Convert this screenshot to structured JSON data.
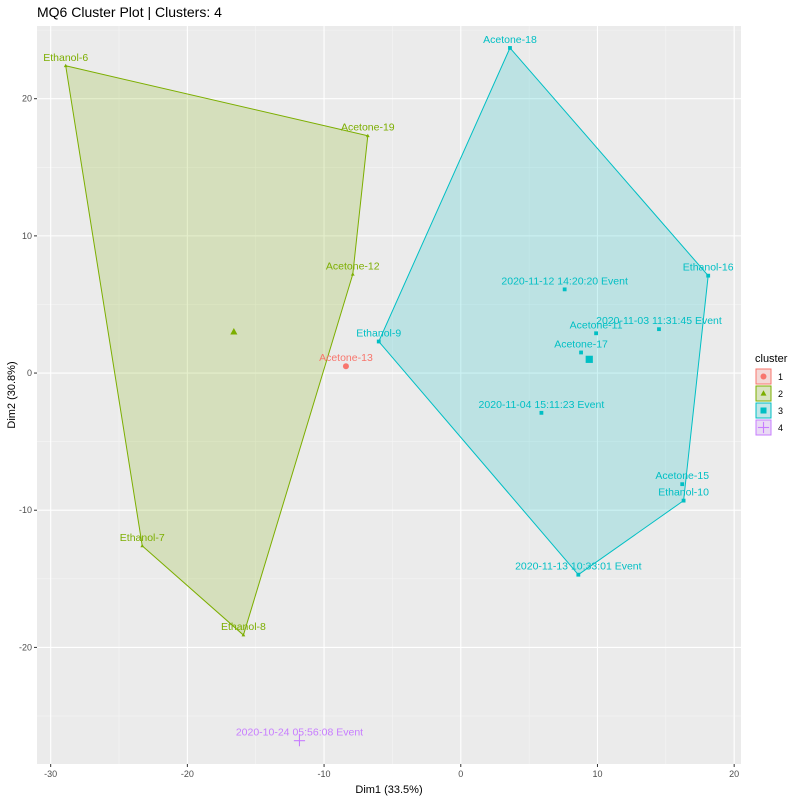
{
  "chart_data": {
    "type": "scatter",
    "title": "MQ6 Cluster Plot | Clusters: 4",
    "xlabel": "Dim1 (33.5%)",
    "ylabel": "Dim2 (30.8%)",
    "xlim": [
      -31,
      20.5
    ],
    "ylim": [
      -28.5,
      25.3
    ],
    "xticks": [
      -30,
      -20,
      -10,
      0,
      10,
      20
    ],
    "yticks": [
      -20,
      -10,
      0,
      10,
      20
    ],
    "grid": true,
    "legend": {
      "title": "cluster",
      "position": "right",
      "entries": [
        {
          "label": "1",
          "color": "#F8766D",
          "shape": "circle"
        },
        {
          "label": "2",
          "color": "#7CAE00",
          "shape": "triangle"
        },
        {
          "label": "3",
          "color": "#00BFC4",
          "shape": "square"
        },
        {
          "label": "4",
          "color": "#C77CFF",
          "shape": "plus"
        }
      ]
    },
    "series": [
      {
        "name": "1",
        "color": "#F8766D",
        "shape": "circle",
        "points": [
          {
            "label": "Acetone-13",
            "x": -8.4,
            "y": 0.5
          }
        ],
        "hull": []
      },
      {
        "name": "2",
        "color": "#7CAE00",
        "shape": "triangle",
        "points": [
          {
            "label": "Ethanol-6",
            "x": -28.9,
            "y": 22.4
          },
          {
            "label": "Acetone-19",
            "x": -6.8,
            "y": 17.3
          },
          {
            "label": "Acetone-12",
            "x": -7.9,
            "y": 7.2
          },
          {
            "label": "Ethanol-7",
            "x": -23.3,
            "y": -12.6
          },
          {
            "label": "Ethanol-8",
            "x": -15.9,
            "y": -19.1
          }
        ],
        "hull": [
          "Ethanol-6",
          "Acetone-19",
          "Acetone-12",
          "Ethanol-8",
          "Ethanol-7"
        ],
        "centroid": {
          "x": -16.6,
          "y": 3.0
        }
      },
      {
        "name": "3",
        "color": "#00BFC4",
        "shape": "square",
        "points": [
          {
            "label": "Acetone-18",
            "x": 3.6,
            "y": 23.7
          },
          {
            "label": "Ethanol-16",
            "x": 18.1,
            "y": 7.1
          },
          {
            "label": "2020-11-12 14:20:20 Event",
            "x": 7.6,
            "y": 6.1
          },
          {
            "label": "Ethanol-9",
            "x": -6.0,
            "y": 2.3
          },
          {
            "label": "Acetone-11",
            "x": 9.9,
            "y": 2.9
          },
          {
            "label": "2020-11-03 11:31:45 Event",
            "x": 14.5,
            "y": 3.2
          },
          {
            "label": "Acetone-17",
            "x": 8.8,
            "y": 1.5
          },
          {
            "label": "2020-11-04 15:11:23 Event",
            "x": 5.9,
            "y": -2.9
          },
          {
            "label": "Acetone-15",
            "x": 16.2,
            "y": -8.1
          },
          {
            "label": "Ethanol-10",
            "x": 16.3,
            "y": -9.3
          },
          {
            "label": "2020-11-13 10:33:01 Event",
            "x": 8.6,
            "y": -14.7
          }
        ],
        "hull": [
          "Acetone-18",
          "Ethanol-16",
          "Ethanol-10",
          "2020-11-13 10:33:01 Event",
          "Ethanol-9"
        ],
        "centroid": {
          "x": 9.4,
          "y": 1.0
        }
      },
      {
        "name": "4",
        "color": "#C77CFF",
        "shape": "plus",
        "points": [
          {
            "label": "2020-10-24 05:56:08 Event",
            "x": -11.8,
            "y": -26.8
          }
        ],
        "hull": []
      }
    ]
  }
}
